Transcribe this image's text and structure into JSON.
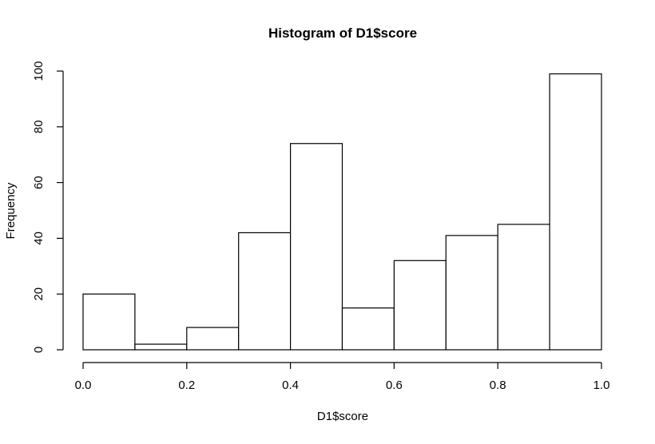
{
  "chart_data": {
    "type": "bar",
    "subtype": "histogram",
    "title": "Histogram of D1$score",
    "xlabel": "D1$score",
    "ylabel": "Frequency",
    "bin_edges": [
      0.0,
      0.1,
      0.2,
      0.3,
      0.4,
      0.5,
      0.6,
      0.7,
      0.8,
      0.9,
      1.0
    ],
    "values": [
      20,
      2,
      8,
      42,
      74,
      15,
      32,
      41,
      45,
      99
    ],
    "xlim": [
      0.0,
      1.0
    ],
    "ylim": [
      0,
      100
    ],
    "x_ticks": [
      0.0,
      0.2,
      0.4,
      0.6,
      0.8,
      1.0
    ],
    "x_tick_labels": [
      "0.0",
      "0.2",
      "0.4",
      "0.6",
      "0.8",
      "1.0"
    ],
    "y_ticks": [
      0,
      20,
      40,
      60,
      80,
      100
    ],
    "y_tick_labels": [
      "0",
      "20",
      "40",
      "60",
      "80",
      "100"
    ],
    "bar_fill": "#ffffff",
    "bar_stroke": "#000000",
    "grid": false,
    "legend": "none"
  }
}
